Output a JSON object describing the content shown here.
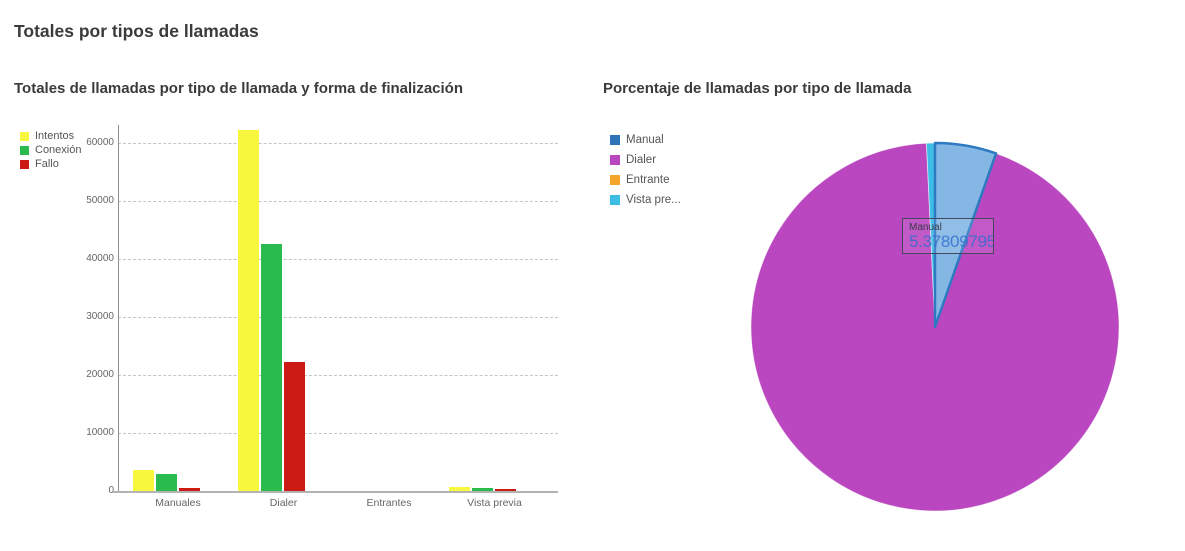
{
  "page": {
    "title": "Totales por tipos de llamadas"
  },
  "chart_data": [
    {
      "type": "bar",
      "title": "Totales de llamadas por tipo de llamada y forma de finalización",
      "categories": [
        "Manuales",
        "Dialer",
        "Entrantes",
        "Vista previa"
      ],
      "series": [
        {
          "name": "Intentos",
          "color": "#f7f73d",
          "values": [
            3600,
            62200,
            0,
            700
          ]
        },
        {
          "name": "Conexión",
          "color": "#2abb4f",
          "values": [
            2900,
            42600,
            0,
            600
          ]
        },
        {
          "name": "Fallo",
          "color": "#cc1b15",
          "values": [
            600,
            22200,
            0,
            300
          ]
        }
      ],
      "xlabel": "",
      "ylabel": "",
      "ylim": [
        0,
        60000
      ],
      "yticks": [
        0,
        10000,
        20000,
        30000,
        40000,
        50000,
        60000
      ],
      "grid": "horizontal-dashed",
      "legend_position": "top-left"
    },
    {
      "type": "pie",
      "title": "Porcentaje de llamadas por tipo de llamada",
      "slices": [
        {
          "label": "Manual",
          "value": 5.378097957,
          "color": "#2e74b9",
          "highlighted": true,
          "highlight_fill": "#85b7e5",
          "highlight_stroke": "#2d7ac1"
        },
        {
          "label": "Dialer",
          "value": 93.88,
          "color": "#ba47c0"
        },
        {
          "label": "Entrante",
          "value": 0,
          "color": "#f5a42c"
        },
        {
          "label": "Vista pre...",
          "value": 0.74,
          "color": "#3dbde6"
        }
      ],
      "legend_position": "top-left",
      "tooltip": {
        "label": "Manual",
        "value": "5.378097957"
      }
    }
  ]
}
